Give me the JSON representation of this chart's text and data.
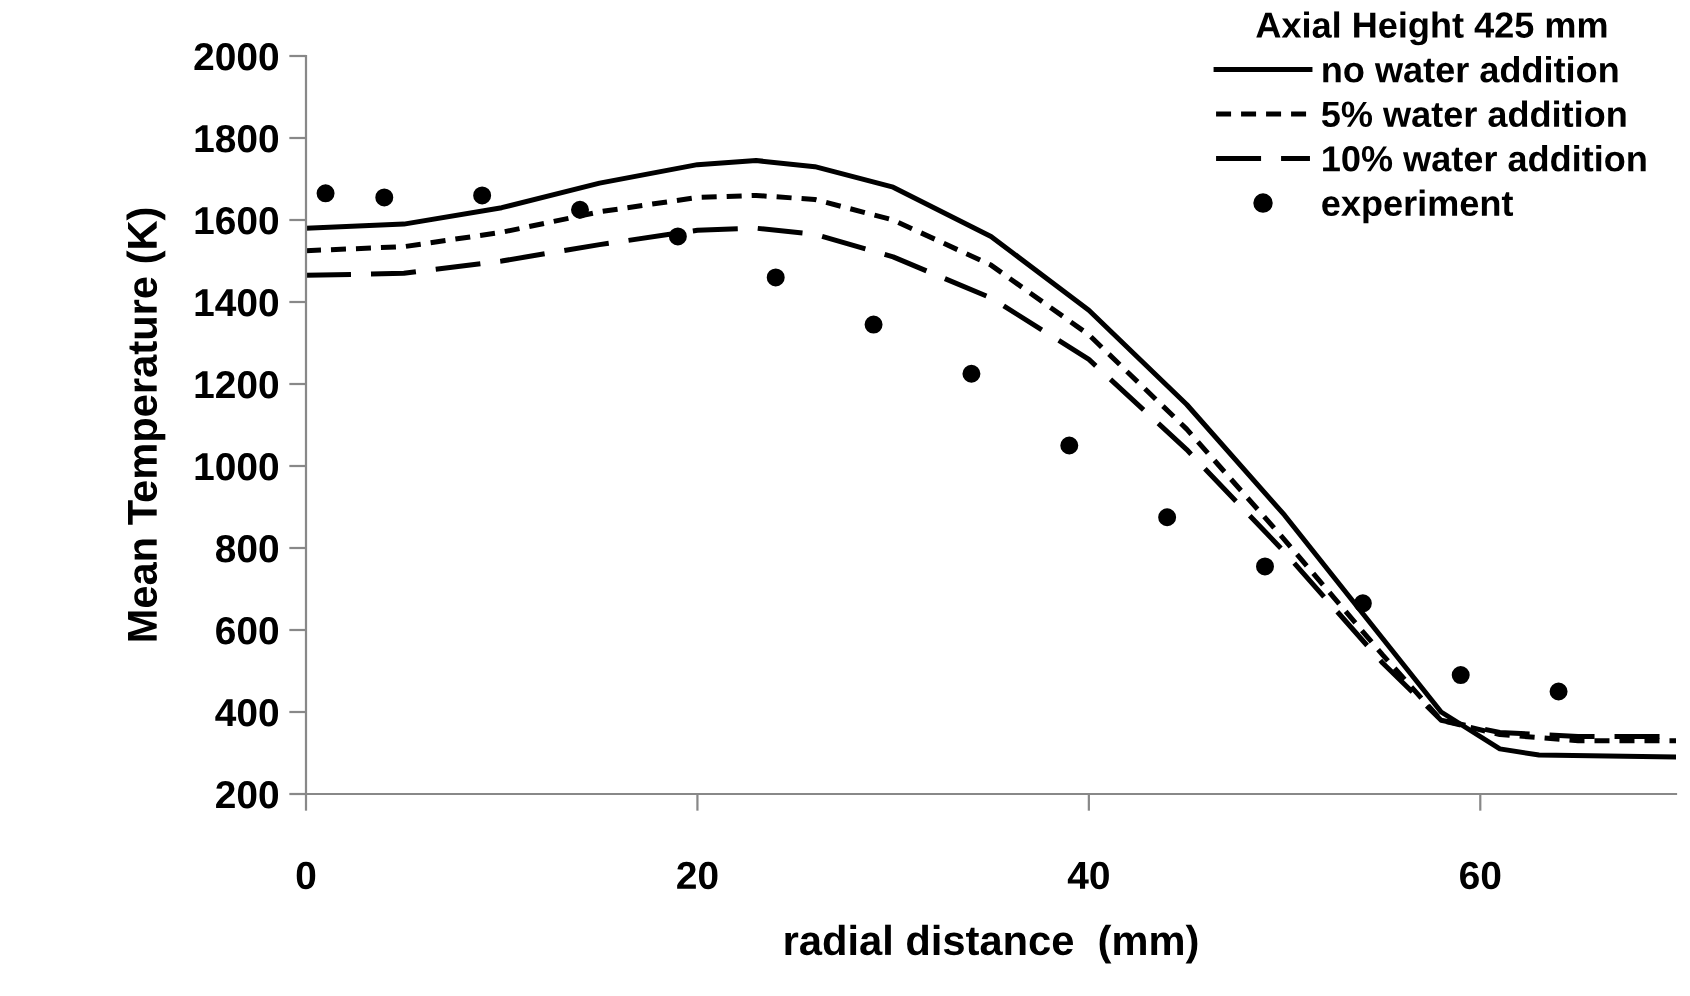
{
  "chart_data": {
    "type": "line",
    "xlabel": "radial distance  (mm)",
    "ylabel": "Mean Temperature (K)",
    "legend_title": "Axial Height 425 mm",
    "xlim": [
      0,
      70
    ],
    "xticks": [
      0,
      20,
      40,
      60
    ],
    "ylim": [
      200,
      2000
    ],
    "yticks": [
      200,
      400,
      600,
      800,
      1000,
      1200,
      1400,
      1600,
      1800,
      2000
    ],
    "grid": false,
    "legend": "top right",
    "series": [
      {
        "name": "no water addition",
        "line_style": "solid",
        "color": "#000000",
        "x": [
          0,
          5,
          10,
          15,
          20,
          23,
          26,
          30,
          35,
          40,
          45,
          50,
          55,
          58,
          61,
          63,
          70
        ],
        "values": [
          1580,
          1590,
          1630,
          1690,
          1735,
          1745,
          1730,
          1680,
          1560,
          1380,
          1150,
          880,
          580,
          400,
          310,
          295,
          290
        ]
      },
      {
        "name": "5% water addition",
        "line_style": "dotted",
        "color": "#000000",
        "x": [
          0,
          5,
          10,
          15,
          20,
          23,
          26,
          30,
          35,
          40,
          45,
          50,
          55,
          58,
          61,
          65,
          70
        ],
        "values": [
          1525,
          1535,
          1570,
          1620,
          1655,
          1660,
          1650,
          1600,
          1490,
          1320,
          1090,
          820,
          540,
          380,
          345,
          330,
          330
        ]
      },
      {
        "name": "10% water addition",
        "line_style": "dashed",
        "color": "#000000",
        "x": [
          0,
          5,
          10,
          15,
          20,
          23,
          26,
          30,
          35,
          40,
          45,
          50,
          55,
          58,
          61,
          65,
          70
        ],
        "values": [
          1465,
          1470,
          1500,
          1540,
          1575,
          1580,
          1565,
          1510,
          1410,
          1260,
          1040,
          790,
          520,
          380,
          350,
          340,
          340
        ]
      },
      {
        "name": "experiment",
        "type": "scatter",
        "marker": "circle",
        "color": "#000000",
        "x": [
          1,
          4,
          9,
          14,
          19,
          24,
          29,
          34,
          39,
          44,
          49,
          54,
          59,
          64
        ],
        "values": [
          1665,
          1655,
          1660,
          1625,
          1560,
          1460,
          1345,
          1225,
          1050,
          875,
          755,
          665,
          490,
          450
        ]
      }
    ]
  }
}
